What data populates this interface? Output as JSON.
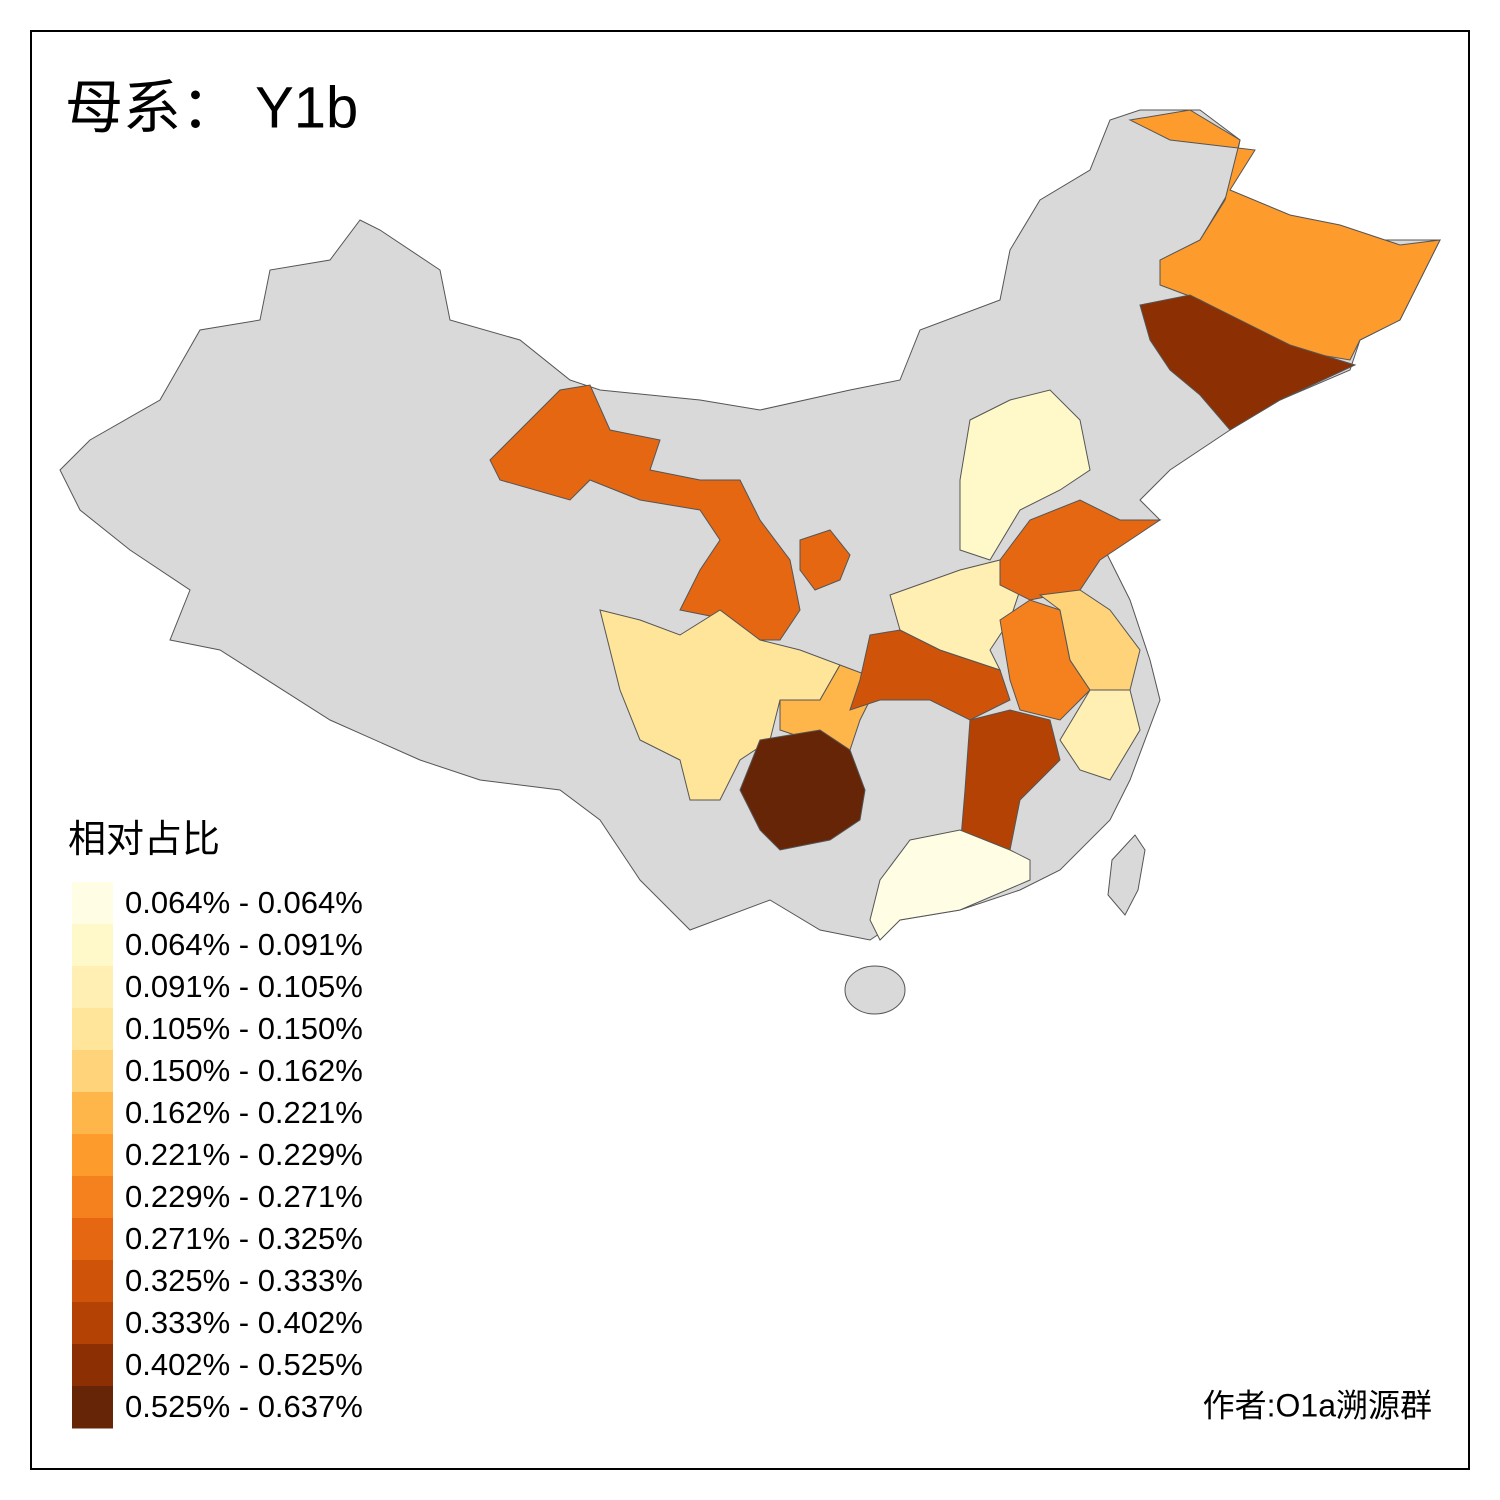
{
  "title": "母系： Y1b",
  "legend": {
    "title": "相对占比",
    "items": [
      {
        "label": "0.064% - 0.064%",
        "color": "#fffee4"
      },
      {
        "label": "0.064% - 0.091%",
        "color": "#fff8c8"
      },
      {
        "label": "0.091% - 0.105%",
        "color": "#ffefb3"
      },
      {
        "label": "0.105% - 0.150%",
        "color": "#fee59a"
      },
      {
        "label": "0.150% - 0.162%",
        "color": "#fed379"
      },
      {
        "label": "0.162% - 0.221%",
        "color": "#feb54a"
      },
      {
        "label": "0.221% - 0.229%",
        "color": "#fd9b2d"
      },
      {
        "label": "0.229% - 0.271%",
        "color": "#f4811e"
      },
      {
        "label": "0.271% - 0.325%",
        "color": "#e66712"
      },
      {
        "label": "0.325% - 0.333%",
        "color": "#d0530a"
      },
      {
        "label": "0.333% - 0.402%",
        "color": "#b44204"
      },
      {
        "label": "0.402% - 0.525%",
        "color": "#8c3004"
      },
      {
        "label": "0.525% - 0.637%",
        "color": "#662506"
      }
    ]
  },
  "credit": "作者:O1a溯源群"
}
